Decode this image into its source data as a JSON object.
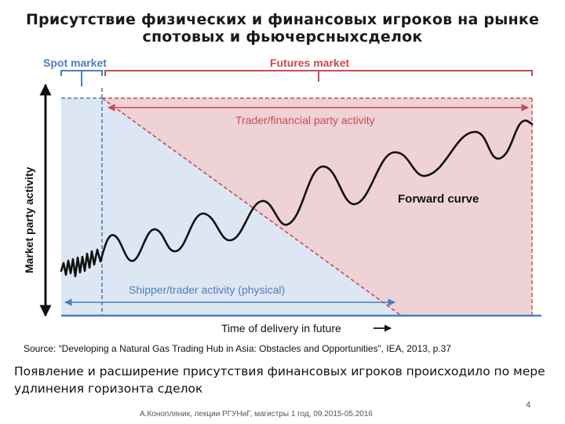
{
  "slide": {
    "title_line1": "Присутствие физических и финансовых игроков на рынке",
    "title_line2": "спотовых и фьючерсныхсделок"
  },
  "diagram": {
    "spot_label": "Spot market",
    "futures_label": "Futures market",
    "trader_label": "Trader/financial party activity",
    "forward_label": "Forward curve",
    "shipper_label": "Shipper/trader activity (physical)",
    "y_axis_label": "Market party activity",
    "x_axis_label": "Time of delivery in future",
    "colors": {
      "blue": "#4a7fbf",
      "blue_fill": "#dde7f3",
      "red": "#c94a55",
      "red_fill": "#eed2d5",
      "curve": "#111111"
    }
  },
  "source": "Source: “Developing a Natural Gas Trading Hub in Asia: Obstacles and Opportunities”, IEA, 2013, p.37",
  "caption": {
    "line1": "Появление и расширение присутствия финансовых игроков происходило по мере",
    "line2": "удлинения горизонта сделок"
  },
  "footer": "А.Конопляник, лекции РГУНиГ, магистры 1 год, 09.2015-05.2016",
  "page_number": "4"
}
